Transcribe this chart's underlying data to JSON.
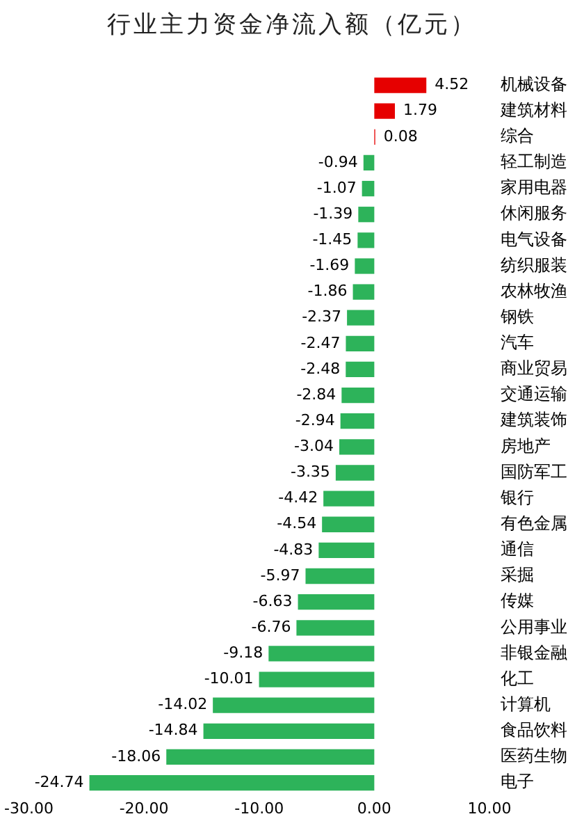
{
  "chart_data": {
    "type": "bar",
    "orientation": "horizontal",
    "title": "行业主力资金净流入额（亿元）",
    "categories": [
      "机械设备",
      "建筑材料",
      "综合",
      "轻工制造",
      "家用电器",
      "休闲服务",
      "电气设备",
      "纺织服装",
      "农林牧渔",
      "钢铁",
      "汽车",
      "商业贸易",
      "交通运输",
      "建筑装饰",
      "房地产",
      "国防军工",
      "银行",
      "有色金属",
      "通信",
      "采掘",
      "传媒",
      "公用事业",
      "非银金融",
      "化工",
      "计算机",
      "食品饮料",
      "医药生物",
      "电子"
    ],
    "values": [
      4.52,
      1.79,
      0.08,
      -0.94,
      -1.07,
      -1.39,
      -1.45,
      -1.69,
      -1.86,
      -2.37,
      -2.47,
      -2.48,
      -2.84,
      -2.94,
      -3.04,
      -3.35,
      -4.42,
      -4.54,
      -4.83,
      -5.97,
      -6.63,
      -6.76,
      -9.18,
      -10.01,
      -14.02,
      -14.84,
      -18.06,
      -24.74
    ],
    "colors": [
      "#e60000",
      "#e60000",
      "#e60000",
      "#2db35a",
      "#2db35a",
      "#2db35a",
      "#2db35a",
      "#2db35a",
      "#2db35a",
      "#2db35a",
      "#2db35a",
      "#2db35a",
      "#2db35a",
      "#2db35a",
      "#2db35a",
      "#2db35a",
      "#2db35a",
      "#2db35a",
      "#2db35a",
      "#2db35a",
      "#2db35a",
      "#2db35a",
      "#2db35a",
      "#2db35a",
      "#2db35a",
      "#2db35a",
      "#2db35a",
      "#2db35a"
    ],
    "xlim": [
      -30,
      10
    ],
    "xticks": [
      {
        "value": -30,
        "label": "-30.00"
      },
      {
        "value": -20,
        "label": "-20.00"
      },
      {
        "value": -10,
        "label": "-10.00"
      },
      {
        "value": 0,
        "label": "0.00"
      },
      {
        "value": 10,
        "label": "10.00"
      }
    ],
    "data_labels": true,
    "grid": false,
    "legend": false
  }
}
